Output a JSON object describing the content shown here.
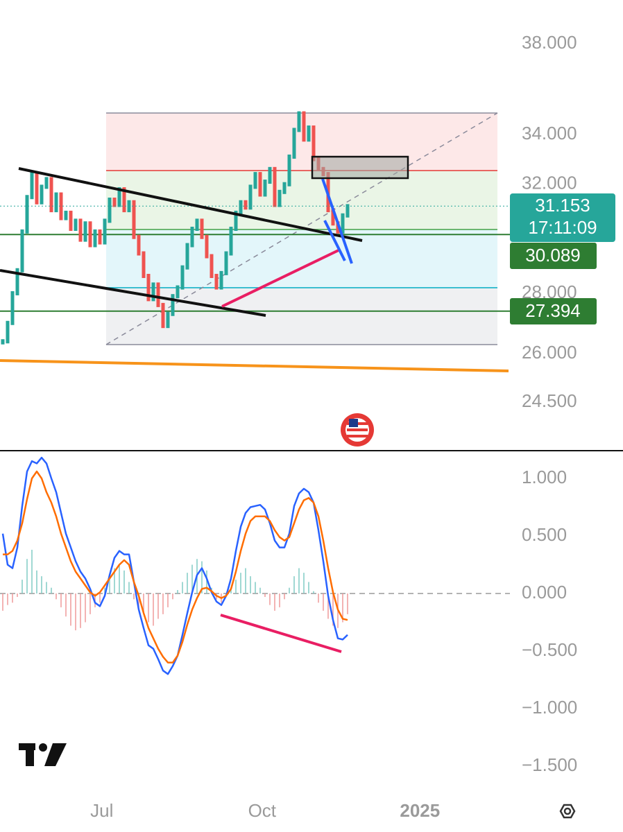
{
  "chart_data": [
    {
      "type": "candlestick",
      "x": [
        0,
        1,
        2,
        3,
        4,
        5,
        6,
        7,
        8,
        9,
        10,
        11,
        12,
        13,
        14,
        15,
        16,
        17,
        18,
        19,
        20,
        21,
        22,
        23,
        24,
        25,
        26,
        27,
        28,
        29,
        30,
        31,
        32,
        33,
        34,
        35,
        36,
        37,
        38,
        39,
        40,
        41,
        42,
        43,
        44,
        45,
        46,
        47,
        48,
        49,
        50,
        51,
        52,
        53,
        54,
        55,
        56,
        57,
        58,
        59,
        60,
        61,
        62,
        63,
        64,
        65,
        66,
        67,
        68,
        69,
        70,
        71
      ],
      "close": [
        26.4,
        27.0,
        28.0,
        28.8,
        30.2,
        31.5,
        32.4,
        31.3,
        31.9,
        32.2,
        31.0,
        31.6,
        30.7,
        30.9,
        30.3,
        30.6,
        29.9,
        30.5,
        29.7,
        30.2,
        29.8,
        30.6,
        31.4,
        31.2,
        31.8,
        31.0,
        31.3,
        30.0,
        29.4,
        28.6,
        27.8,
        28.3,
        27.6,
        26.9,
        27.3,
        27.9,
        28.2,
        28.9,
        29.7,
        30.3,
        30.6,
        30.0,
        29.3,
        28.6,
        28.2,
        28.7,
        29.4,
        30.3,
        30.9,
        31.3,
        31.1,
        31.9,
        32.4,
        31.6,
        32.1,
        32.6,
        31.2,
        31.7,
        32.0,
        33.1,
        34.2,
        34.9,
        33.8,
        34.3,
        33.0,
        32.6,
        32.4,
        31.0,
        30.5,
        30.2,
        30.8,
        31.15
      ],
      "up_color": "#26a69a",
      "down_color": "#ef5350",
      "log_scale": true,
      "xlim": [
        -0.57,
        104.43
      ],
      "ylim": [
        23.09,
        40.1
      ],
      "yticks": [
        {
          "value": 38,
          "label": "38.000"
        },
        {
          "value": 34,
          "label": "34.000"
        },
        {
          "value": 32,
          "label": "32.000"
        },
        {
          "value": 28,
          "label": "28.000"
        },
        {
          "value": 26,
          "label": "26.000"
        },
        {
          "value": 24.5,
          "label": "24.500"
        }
      ],
      "last_price": 31.153,
      "countdown": "17:11:09",
      "last_color": "#26a69a",
      "levels": [
        30.089,
        27.394
      ],
      "level_color": "#2e7d32"
    },
    {
      "type": "macd",
      "x": [
        0,
        1,
        2,
        3,
        4,
        5,
        6,
        7,
        8,
        9,
        10,
        11,
        12,
        13,
        14,
        15,
        16,
        17,
        18,
        19,
        20,
        21,
        22,
        23,
        24,
        25,
        26,
        27,
        28,
        29,
        30,
        31,
        32,
        33,
        34,
        35,
        36,
        37,
        38,
        39,
        40,
        41,
        42,
        43,
        44,
        45,
        46,
        47,
        48,
        49,
        50,
        51,
        52,
        53,
        54,
        55,
        56,
        57,
        58,
        59,
        60,
        61,
        62,
        63,
        64,
        65,
        66,
        67,
        68,
        69,
        70,
        71
      ],
      "series": [
        {
          "color": "#2962ff",
          "values": [
            0.52,
            0.25,
            0.22,
            0.4,
            0.76,
            1.06,
            1.15,
            1.13,
            1.18,
            1.13,
            1.0,
            0.88,
            0.7,
            0.52,
            0.4,
            0.28,
            0.19,
            0.13,
            0.04,
            -0.08,
            -0.11,
            -0.02,
            0.16,
            0.31,
            0.37,
            0.34,
            0.34,
            0.1,
            -0.14,
            -0.3,
            -0.45,
            -0.48,
            -0.57,
            -0.67,
            -0.7,
            -0.63,
            -0.54,
            -0.36,
            -0.17,
            0.01,
            0.16,
            0.22,
            0.13,
            0.01,
            -0.07,
            -0.1,
            -0.02,
            0.13,
            0.37,
            0.58,
            0.7,
            0.75,
            0.76,
            0.77,
            0.73,
            0.61,
            0.46,
            0.4,
            0.4,
            0.52,
            0.76,
            0.87,
            0.91,
            0.88,
            0.79,
            0.55,
            0.28,
            -0.02,
            -0.23,
            -0.39,
            -0.4,
            -0.36
          ]
        },
        {
          "color": "#ff6d00",
          "values": [
            0.34,
            0.34,
            0.37,
            0.46,
            0.61,
            0.82,
            1.0,
            1.06,
            1.0,
            0.88,
            0.79,
            0.67,
            0.52,
            0.4,
            0.28,
            0.19,
            0.13,
            0.07,
            0.01,
            -0.02,
            0.01,
            0.07,
            0.13,
            0.19,
            0.25,
            0.29,
            0.25,
            0.1,
            -0.02,
            -0.17,
            -0.3,
            -0.39,
            -0.48,
            -0.55,
            -0.6,
            -0.6,
            -0.54,
            -0.42,
            -0.27,
            -0.14,
            -0.04,
            0.04,
            0.05,
            0.02,
            -0.02,
            -0.04,
            -0.02,
            0.04,
            0.19,
            0.37,
            0.52,
            0.63,
            0.67,
            0.67,
            0.67,
            0.63,
            0.55,
            0.49,
            0.46,
            0.49,
            0.61,
            0.73,
            0.81,
            0.83,
            0.79,
            0.67,
            0.46,
            0.22,
            0.01,
            -0.14,
            -0.22,
            -0.23
          ]
        }
      ],
      "histogram": {
        "up_color": "#80cbc4",
        "down_color": "#ef9a9a",
        "values": [
          -0.15,
          -0.1,
          -0.08,
          -0.03,
          0.12,
          0.3,
          0.38,
          0.2,
          0.15,
          0.1,
          0.05,
          -0.05,
          -0.12,
          -0.2,
          -0.28,
          -0.32,
          -0.3,
          -0.25,
          -0.18,
          -0.12,
          -0.08,
          0.05,
          0.12,
          0.22,
          0.25,
          0.2,
          0.1,
          -0.05,
          -0.12,
          -0.18,
          -0.25,
          -0.28,
          -0.22,
          -0.18,
          -0.12,
          -0.05,
          0.03,
          0.1,
          0.18,
          0.25,
          0.3,
          0.28,
          0.2,
          0.05,
          -0.05,
          -0.08,
          -0.02,
          0.05,
          0.12,
          0.18,
          0.22,
          0.15,
          0.1,
          0.05,
          -0.03,
          -0.1,
          -0.15,
          -0.12,
          -0.05,
          0.05,
          0.15,
          0.22,
          0.18,
          0.1,
          0.02,
          -0.08,
          -0.15,
          -0.22,
          -0.28,
          -0.3,
          -0.25,
          -0.18
        ]
      },
      "baseline": 0,
      "xlim": [
        -0.57,
        104.43
      ],
      "ylim": [
        -1.711,
        1.241
      ],
      "yticks": [
        {
          "value": 1,
          "label": "1.000"
        },
        {
          "value": 0.5,
          "label": "0.500"
        },
        {
          "value": 0,
          "label": "0.000"
        },
        {
          "value": -0.5,
          "label": "−0.500"
        },
        {
          "value": -1,
          "label": "−1.000"
        },
        {
          "value": -1.5,
          "label": "−1.500"
        }
      ],
      "xticks": [
        {
          "value": 20.4,
          "label": "Jul"
        },
        {
          "value": 53.4,
          "label": "Oct"
        },
        {
          "value": 85.9,
          "label": "2025"
        }
      ]
    }
  ]
}
